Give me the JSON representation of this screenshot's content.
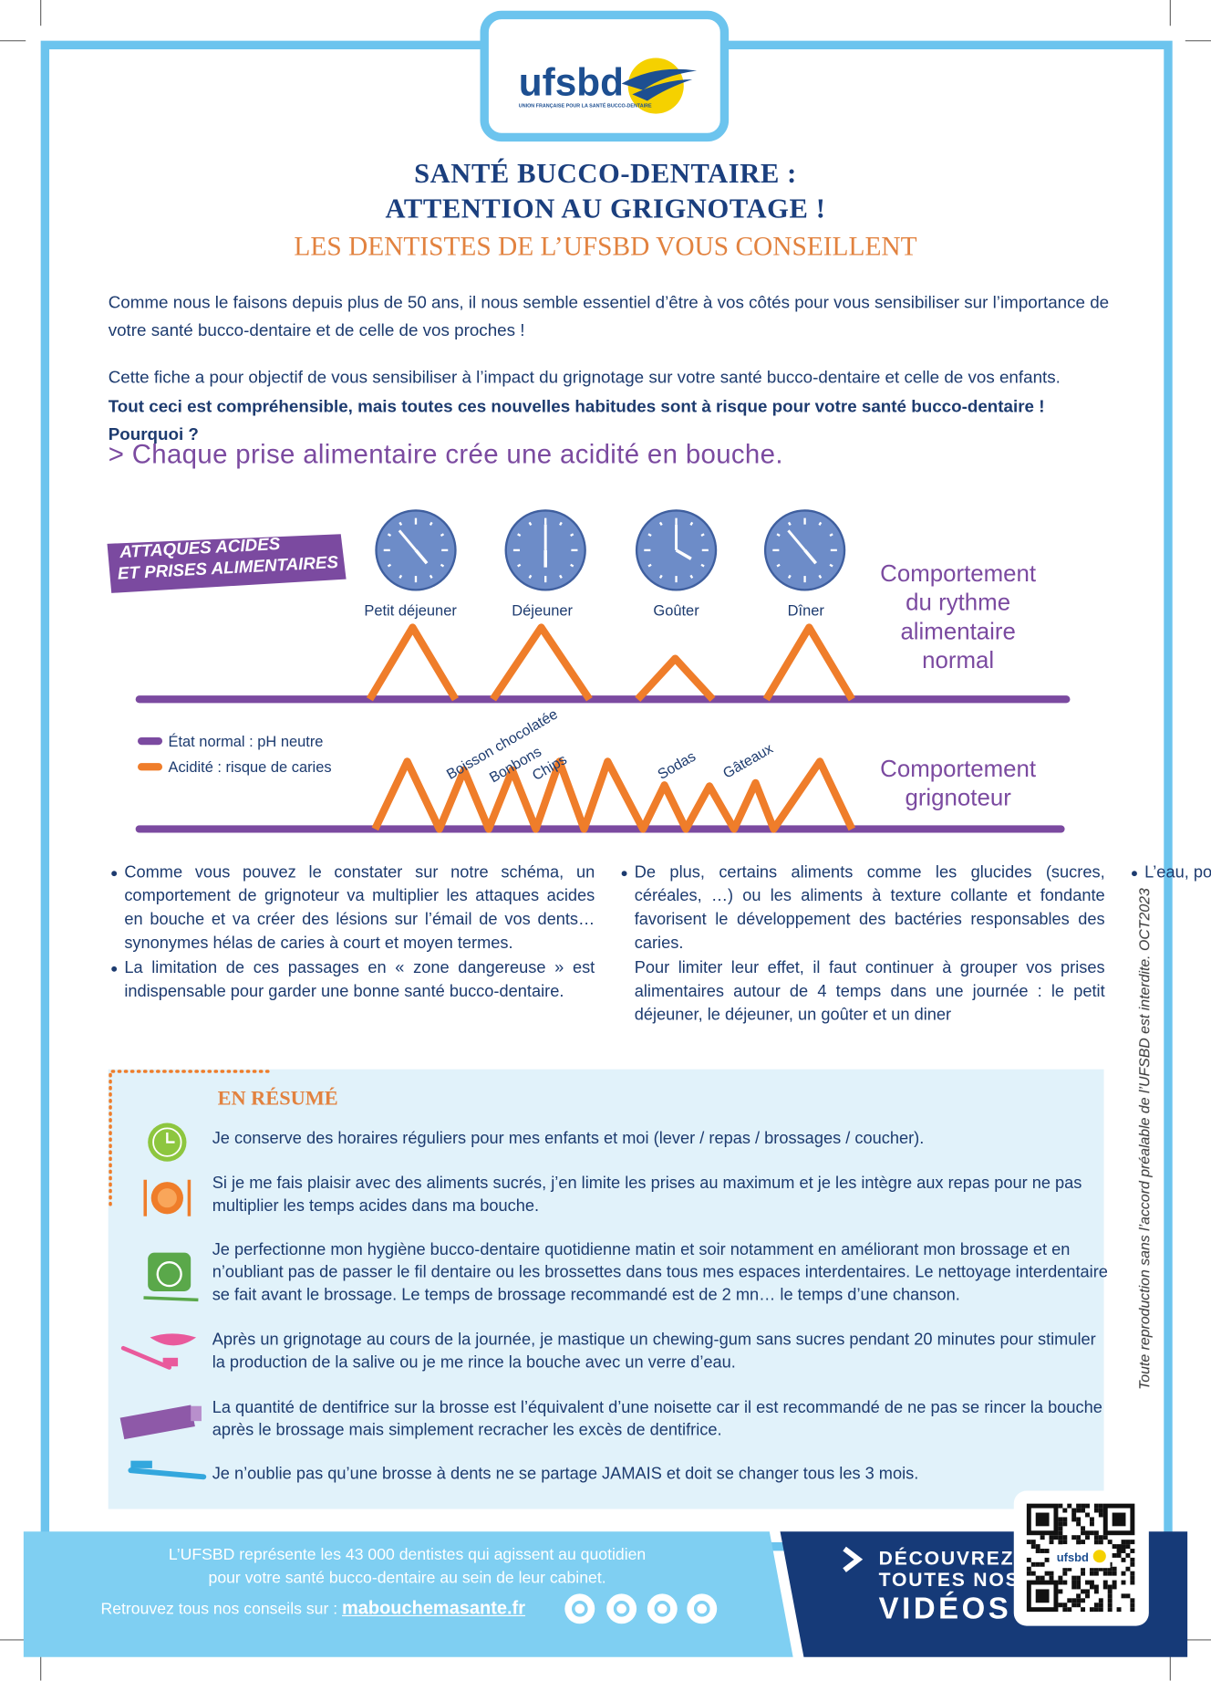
{
  "header": {
    "logo": "ufsbd",
    "logo_tagline": "UNION FRANÇAISE POUR LA SANTÉ BUCCO-DENTAIRE",
    "title_line_1": "SANTÉ BUCCO-DENTAIRE :",
    "title_line_2": "ATTENTION AU GRIGNOTAGE !",
    "subtitle": "LES DENTISTES DE L’UFSBD VOUS CONSEILLENT"
  },
  "intro": {
    "paragraph_1": "Comme nous le faisons depuis plus de 50 ans, il nous semble essentiel d’être à vos côtés pour vous sensibiliser sur l’importance de votre santé bucco-dentaire et de celle de vos proches !",
    "paragraph_2": "Cette fiche a pour objectif de vous sensibiliser à l’impact du grignotage sur votre santé bucco-dentaire et celle de vos enfants.",
    "paragraph_2_bold": "Tout ceci est compréhensible, mais toutes ces nouvelles habitudes sont à risque pour votre santé bucco-dentaire ! Pourquoi ?"
  },
  "section_heading": "> Chaque prise alimentaire crée une acidité en bouche.",
  "diagram": {
    "badge_line_1": "ATTAQUES ACIDES",
    "badge_line_2": "ET PRISES ALIMENTAIRES",
    "meals": [
      "Petit déjeuner",
      "Déjeuner",
      "Goûter",
      "Dîner"
    ],
    "normal_label": [
      "Comportement",
      "du rythme",
      "alimentaire",
      "normal"
    ],
    "snacker_label": [
      "Comportement",
      "grignoteur"
    ],
    "legend": [
      "État normal : pH neutre",
      "Acidité : risque de caries"
    ],
    "snacks": [
      "Boisson chocolatée",
      "Bonbons",
      "Chips",
      "Sodas",
      "Gâteaux"
    ]
  },
  "bullets": [
    {
      "text": "Comme vous pouvez le constater sur notre schéma, un comportement de grignoteur va multiplier les attaques acides en bouche et va créer des lésions sur l’émail de vos dents… synonymes hélas de caries à court et moyen termes.",
      "marker": true
    },
    {
      "text": "La limitation de ces passages en « zone dangereuse » est indispensable pour garder une bonne santé bucco-dentaire.",
      "marker": true
    },
    {
      "text": "De plus, certains aliments comme les glucides (sucres, céréales, …) ou les aliments à texture collante et fondante favorisent le développement des bactéries responsables des caries.",
      "marker": true
    },
    {
      "text": "Pour limiter leur effet, il faut continuer à grouper vos prises alimentaires autour de 4 temps dans une journée : le petit déjeuner, le déjeuner, un goûter et un diner",
      "marker": false
    },
    {
      "text": "L’eau, pour rappel est la seule boisson amie de nos dents !",
      "marker": true
    }
  ],
  "summary": {
    "title": "EN RÉSUMÉ",
    "items": [
      "Je conserve des horaires réguliers pour mes enfants et moi (lever / repas / brossages / coucher).",
      "Si je me fais plaisir avec des aliments sucrés, j’en limite les prises au maximum et je les intègre aux repas pour ne pas multiplier les temps acides dans ma bouche.",
      "Je perfectionne mon hygiène bucco-dentaire quotidienne  matin et soir notamment en améliorant mon brossage et en n’oubliant pas de passer le fil dentaire ou les brossettes dans tous mes espaces interdentaires. Le nettoyage interdentaire se fait avant le brossage. Le temps de brossage recommandé est de 2 mn… le temps d’une chanson.",
      "Après un grignotage au cours de la journée, je mastique un chewing-gum sans sucres pendant 20 minutes pour stimuler la production de la salive ou je me rince la bouche avec un verre d’eau.",
      "La quantité de dentifrice sur la brosse est l’équivalent d’une noisette car il est recommandé de ne pas se rincer la bouche après le brossage mais simplement recracher les excès de dentifrice.",
      "Je n’oublie pas qu’une brosse à dents ne se partage JAMAIS et doit se changer tous les 3 mois."
    ]
  },
  "footer": {
    "about_line_1": "L’UFSBD représente les 43 000 dentistes qui agissent au quotidien",
    "about_line_2": "pour votre santé bucco-dentaire au sein de leur cabinet.",
    "advice": "Retrouvez tous nos conseils sur :",
    "website": "mabouchemasante.fr",
    "videos_line_1": "DÉCOUVREZ",
    "videos_line_2": "TOUTES NOS",
    "videos_line_3": "VIDÉOS",
    "qr_logo": "ufsbd"
  },
  "side_note": "Toute reproduction sans l’accord préalable de l’UFSBD est interdite. OCT2023"
}
